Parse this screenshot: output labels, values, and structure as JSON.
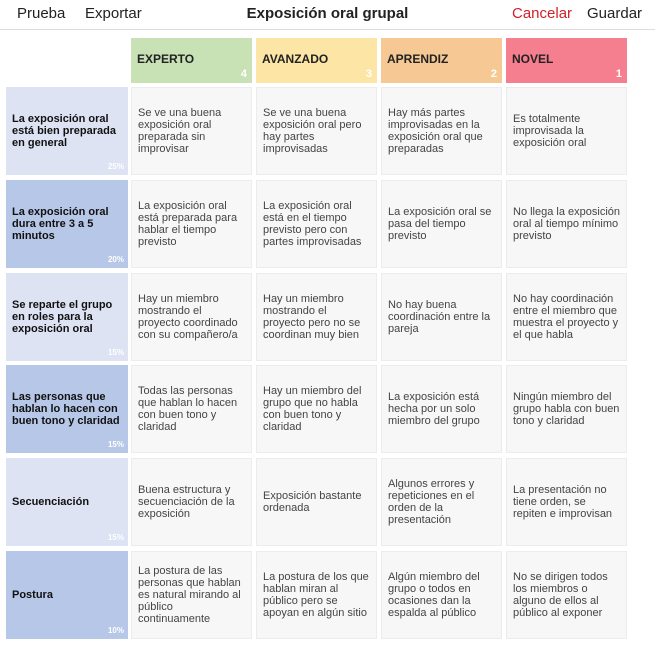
{
  "header": {
    "left_buttons": [
      "Prueba",
      "Exportar"
    ],
    "title": "Exposición oral grupal",
    "cancel": "Cancelar",
    "save": "Guardar"
  },
  "levels": [
    {
      "name": "EXPERTO",
      "points": 4,
      "color": "#c8e2b6"
    },
    {
      "name": "AVANZADO",
      "points": 3,
      "color": "#fde5a5"
    },
    {
      "name": "APRENDIZ",
      "points": 2,
      "color": "#f6c893"
    },
    {
      "name": "NOVEL",
      "points": 1,
      "color": "#f57f8f"
    }
  ],
  "criteria": [
    {
      "title": "La exposición oral está bien preparada en general",
      "weight": "25%",
      "descriptors": [
        "Se ve una buena exposición oral preparada sin improvisar",
        "Se ve una buena exposición oral pero hay partes improvisadas",
        "Hay más partes improvisadas en la exposición oral que preparadas",
        "Es totalmente improvisada la exposición oral"
      ]
    },
    {
      "title": "La exposición oral dura entre 3 a 5 minutos",
      "weight": "20%",
      "descriptors": [
        "La exposición oral está preparada para hablar el tiempo previsto",
        "La exposición oral está en el tiempo previsto pero con partes improvisadas",
        "La exposición oral se pasa del tiempo previsto",
        "No llega la exposición oral al tiempo mínimo previsto"
      ]
    },
    {
      "title": "Se reparte el grupo en roles para la exposición oral",
      "weight": "15%",
      "descriptors": [
        "Hay un miembro mostrando el proyecto coordinado con su compañero/a",
        "Hay un miembro mostrando el proyecto pero no se coordinan muy bien",
        "No hay buena coordinación entre la pareja",
        "No hay coordinación entre el miembro que muestra el proyecto y el que habla"
      ]
    },
    {
      "title": "Las personas que hablan lo hacen con buen tono y claridad",
      "weight": "15%",
      "descriptors": [
        "Todas las personas que hablan lo hacen con buen tono y claridad",
        "Hay un miembro del grupo que no habla con buen tono y claridad",
        "La exposición está hecha por un solo miembro del grupo",
        "Ningún miembro del grupo habla con buen tono y claridad"
      ]
    },
    {
      "title": "Secuenciación",
      "weight": "15%",
      "descriptors": [
        "Buena estructura y secuenciación de la exposición",
        "Exposición bastante ordenada",
        "Algunos errores y repeticiones en el orden de la presentación",
        "La presentación no tiene orden, se repiten e improvisan"
      ]
    },
    {
      "title": "Postura",
      "weight": "10%",
      "descriptors": [
        "La postura de las personas que hablan es natural mirando al público continuamente",
        "La postura de los que hablan miran al público pero se apoyan en algún sitio",
        "Algún miembro del grupo o todos en ocasiones dan la espalda al público",
        "No se dirigen todos los miembros o alguno de ellos al público al exponer"
      ]
    }
  ]
}
